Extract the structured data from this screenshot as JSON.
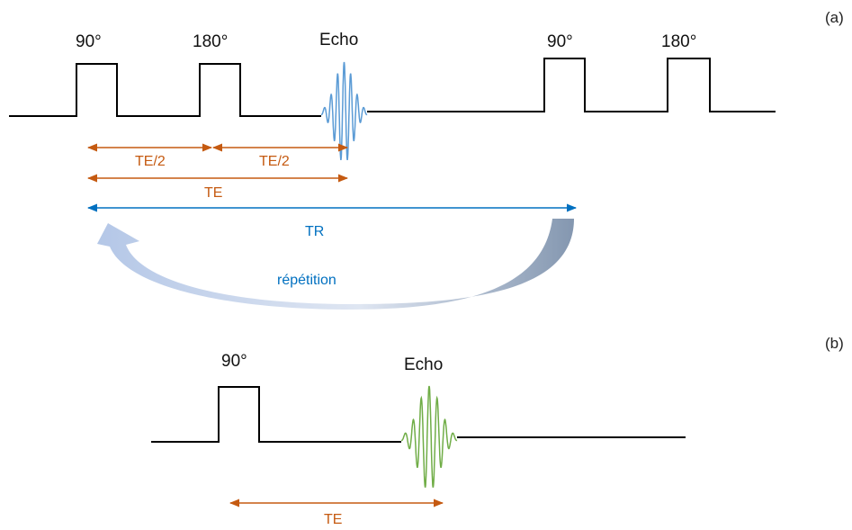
{
  "panel_a": {
    "tag": "(a)",
    "pulse_labels": [
      "90°",
      "180°",
      "Echo",
      "90°",
      "180°"
    ],
    "intervals": {
      "half_echo_time_1": "TE/2",
      "half_echo_time_2": "TE/2",
      "echo_time": "TE",
      "repetition_time": "TR"
    },
    "repeat_label": "répétition"
  },
  "panel_b": {
    "tag": "(b)",
    "pulse_label": "90°",
    "echo_label": "Echo",
    "echo_time": "TE"
  },
  "colors": {
    "line": "#000000",
    "orange": "#c55a11",
    "blue": "#0070c0",
    "echo_a": "#5b9bd5",
    "echo_b": "#70ad47",
    "arrow_light": "#b4c7e7",
    "arrow_dark": "#8497b0"
  }
}
